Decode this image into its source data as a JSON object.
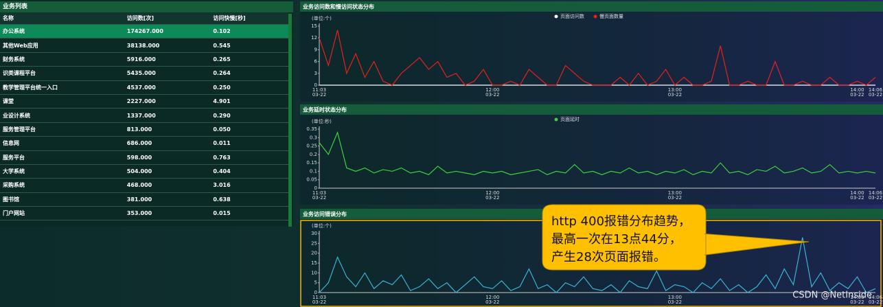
{
  "table": {
    "title": "业务列表",
    "columns": [
      "名称",
      "访问数[次]",
      "访问快慢[秒]"
    ],
    "rows": [
      [
        "办公系统",
        "174267.000",
        "0.102"
      ],
      [
        "其他Web应用",
        "38138.000",
        "0.545"
      ],
      [
        "财务系统",
        "5916.000",
        "0.265"
      ],
      [
        "识类课程平台",
        "5435.000",
        "0.264"
      ],
      [
        "教学管理平台统一入口",
        "4537.000",
        "0.250"
      ],
      [
        "课堂",
        "2227.000",
        "4.901"
      ],
      [
        "业设计系统",
        "1337.000",
        "0.290"
      ],
      [
        "服务管理平台",
        "813.000",
        "0.050"
      ],
      [
        "信息网",
        "686.000",
        "0.011"
      ],
      [
        "服务平台",
        "598.000",
        "0.763"
      ],
      [
        "大学系统",
        "504.000",
        "0.404"
      ],
      [
        "采购系统",
        "468.000",
        "3.016"
      ],
      [
        "图书馆",
        "381.000",
        "0.638"
      ],
      [
        "门户网站",
        "353.000",
        "0.015"
      ]
    ]
  },
  "chart_data": [
    {
      "type": "line",
      "title": "业务访问数和慢访问状态分布",
      "unit": "(单位:个)",
      "ylim": [
        0,
        15
      ],
      "yticks": [
        0,
        3,
        6,
        9,
        12,
        15
      ],
      "x": [
        "11:03",
        "11:06",
        "11:09",
        "11:12",
        "11:15",
        "11:18",
        "11:21",
        "11:24",
        "11:27",
        "11:30",
        "11:33",
        "11:36",
        "11:39",
        "11:42",
        "11:45",
        "11:48",
        "11:51",
        "11:54",
        "11:57",
        "12:00",
        "12:03",
        "12:06",
        "12:09",
        "12:12",
        "12:15",
        "12:18",
        "12:21",
        "12:24",
        "12:27",
        "12:30",
        "12:33",
        "12:36",
        "12:39",
        "12:42",
        "12:45",
        "12:48",
        "12:51",
        "12:54",
        "12:57",
        "13:00",
        "13:03",
        "13:06",
        "13:09",
        "13:12",
        "13:15",
        "13:18",
        "13:21",
        "13:24",
        "13:27",
        "13:30",
        "13:33",
        "13:36",
        "13:39",
        "13:42",
        "13:45",
        "13:48",
        "13:51",
        "13:54",
        "13:57",
        "14:00",
        "14:03",
        "14:06"
      ],
      "xticks": [
        {
          "time": "11:03",
          "date": "03-22"
        },
        {
          "time": "12:00",
          "date": "03-22"
        },
        {
          "time": "13:00",
          "date": "03-22"
        },
        {
          "time": "14:00",
          "date": "03-22"
        },
        {
          "time": "14:06",
          "date": "03-22"
        }
      ],
      "series": [
        {
          "name": "页面访问数",
          "color": "#ffffff",
          "values": [
            0,
            0,
            0,
            0,
            0,
            0,
            0,
            0,
            0,
            0,
            0,
            0,
            0,
            0,
            0,
            0,
            0,
            0,
            0,
            0,
            0,
            0,
            0,
            0,
            0,
            0,
            0,
            0,
            0,
            0,
            0,
            0,
            0,
            0,
            0,
            0,
            0,
            0,
            0,
            0,
            0,
            0,
            0,
            0,
            0,
            0,
            0,
            0,
            0,
            0,
            0,
            0,
            0,
            0,
            0,
            0,
            0,
            0,
            0,
            0,
            0,
            0
          ]
        },
        {
          "name": "慢页面数量",
          "color": "#e8201c",
          "values": [
            12,
            5,
            14,
            3,
            8,
            2,
            6,
            1,
            0,
            3,
            5,
            7,
            4,
            6,
            2,
            3,
            0,
            1,
            4,
            0,
            0,
            1,
            0,
            4,
            2,
            0,
            0,
            5,
            3,
            1,
            0,
            0,
            0,
            2,
            0,
            3,
            0,
            1,
            4,
            0,
            2,
            0,
            0,
            1,
            10,
            0,
            0,
            1,
            0,
            0,
            6,
            0,
            0,
            1,
            0,
            0,
            2,
            0,
            0,
            1,
            0,
            2
          ]
        }
      ]
    },
    {
      "type": "line",
      "title": "业务延时状态分布",
      "unit": "(单位:秒)",
      "ylim": [
        0,
        0.35
      ],
      "yticks": [
        0,
        0.05,
        0.1,
        0.15,
        0.2,
        0.25,
        0.3,
        0.35
      ],
      "x": [
        "11:03",
        "11:06",
        "11:09",
        "11:12",
        "11:15",
        "11:18",
        "11:21",
        "11:24",
        "11:27",
        "11:30",
        "11:33",
        "11:36",
        "11:39",
        "11:42",
        "11:45",
        "11:48",
        "11:51",
        "11:54",
        "11:57",
        "12:00",
        "12:03",
        "12:06",
        "12:09",
        "12:12",
        "12:15",
        "12:18",
        "12:21",
        "12:24",
        "12:27",
        "12:30",
        "12:33",
        "12:36",
        "12:39",
        "12:42",
        "12:45",
        "12:48",
        "12:51",
        "12:54",
        "12:57",
        "13:00",
        "13:03",
        "13:06",
        "13:09",
        "13:12",
        "13:15",
        "13:18",
        "13:21",
        "13:24",
        "13:27",
        "13:30",
        "13:33",
        "13:36",
        "13:39",
        "13:42",
        "13:45",
        "13:48",
        "13:51",
        "13:54",
        "13:57",
        "14:00",
        "14:03",
        "14:06"
      ],
      "xticks": [
        {
          "time": "11:03",
          "date": "03-22"
        },
        {
          "time": "12:00",
          "date": "03-22"
        },
        {
          "time": "13:00",
          "date": "03-22"
        },
        {
          "time": "14:00",
          "date": "03-22"
        },
        {
          "time": "14:06",
          "date": "03-22"
        }
      ],
      "series": [
        {
          "name": "页面延时",
          "color": "#3ad43a",
          "values": [
            0.27,
            0.2,
            0.33,
            0.12,
            0.1,
            0.12,
            0.09,
            0.11,
            0.1,
            0.12,
            0.09,
            0.1,
            0.08,
            0.13,
            0.09,
            0.1,
            0.09,
            0.08,
            0.1,
            0.09,
            0.1,
            0.08,
            0.09,
            0.1,
            0.11,
            0.08,
            0.1,
            0.09,
            0.14,
            0.09,
            0.1,
            0.08,
            0.1,
            0.09,
            0.12,
            0.09,
            0.1,
            0.08,
            0.1,
            0.09,
            0.11,
            0.08,
            0.1,
            0.09,
            0.15,
            0.09,
            0.1,
            0.08,
            0.11,
            0.1,
            0.13,
            0.09,
            0.1,
            0.12,
            0.09,
            0.1,
            0.14,
            0.09,
            0.1,
            0.09,
            0.1,
            0.09
          ]
        }
      ]
    },
    {
      "type": "line",
      "title": "业务访问错误分布",
      "unit": "(单位:个)",
      "ylim": [
        0,
        30
      ],
      "yticks": [
        0,
        5,
        10,
        15,
        20,
        25,
        30
      ],
      "x": [
        "11:03",
        "11:06",
        "11:09",
        "11:12",
        "11:15",
        "11:18",
        "11:21",
        "11:24",
        "11:27",
        "11:30",
        "11:33",
        "11:36",
        "11:39",
        "11:42",
        "11:45",
        "11:48",
        "11:51",
        "11:54",
        "11:57",
        "12:00",
        "12:03",
        "12:06",
        "12:09",
        "12:12",
        "12:15",
        "12:18",
        "12:21",
        "12:24",
        "12:27",
        "12:30",
        "12:33",
        "12:36",
        "12:39",
        "12:42",
        "12:45",
        "12:48",
        "12:51",
        "12:54",
        "12:57",
        "13:00",
        "13:03",
        "13:06",
        "13:09",
        "13:12",
        "13:15",
        "13:18",
        "13:21",
        "13:24",
        "13:27",
        "13:30",
        "13:33",
        "13:36",
        "13:39",
        "13:42",
        "13:45",
        "13:48",
        "13:51",
        "13:54",
        "13:57",
        "14:00",
        "14:03",
        "14:06"
      ],
      "xticks": [
        {
          "time": "11:03",
          "date": "03-22"
        },
        {
          "time": "12:00",
          "date": "03-22"
        },
        {
          "time": "13:00",
          "date": "03-22"
        },
        {
          "time": "14:00",
          "date": "03-22"
        },
        {
          "time": "14:06",
          "date": "03-22"
        }
      ],
      "series": [
        {
          "color": "#3ab4d4",
          "values": [
            0,
            5,
            18,
            8,
            3,
            10,
            2,
            6,
            4,
            9,
            1,
            3,
            7,
            2,
            5,
            0,
            4,
            8,
            3,
            2,
            6,
            1,
            3,
            12,
            2,
            4,
            0,
            5,
            3,
            8,
            2,
            1,
            4,
            0,
            6,
            3,
            2,
            11,
            1,
            4,
            3,
            0,
            5,
            2,
            7,
            1,
            4,
            0,
            3,
            9,
            2,
            12,
            4,
            28,
            3,
            10,
            1,
            5,
            2,
            8,
            0,
            2
          ]
        }
      ],
      "annotation": [
        "http 400报错分布趋势，",
        "最高一次在13点44分，",
        "产生28次页面报错。"
      ]
    }
  ],
  "watermark": "CSDN @NetInside"
}
